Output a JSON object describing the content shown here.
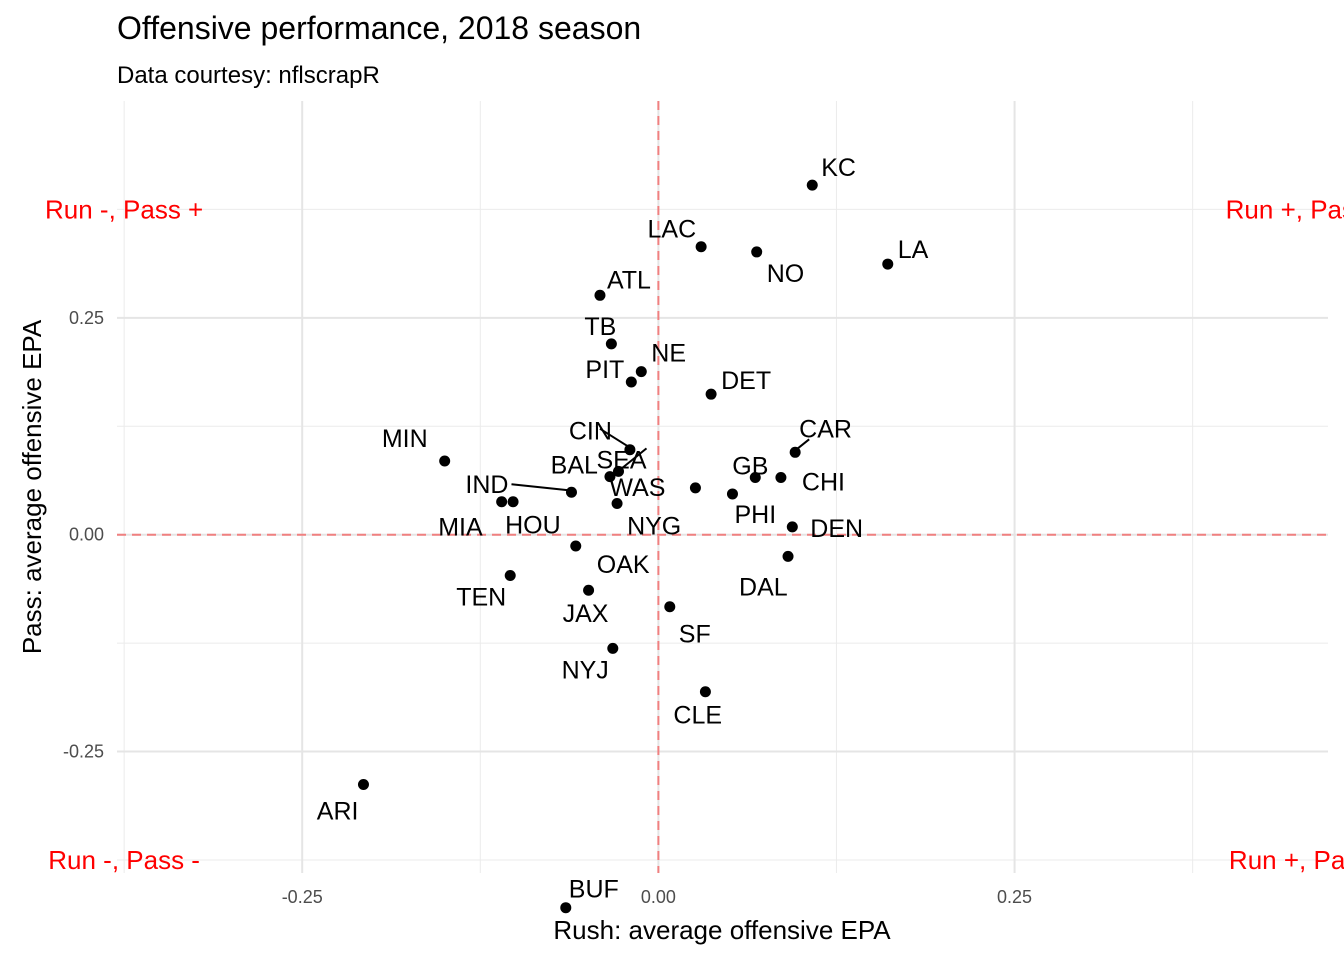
{
  "chart_data": {
    "type": "scatter",
    "title": "Offensive performance, 2018 season",
    "subtitle": "Data courtesy: nflscrapR",
    "xlabel": "Rush: average offensive EPA",
    "ylabel": "Pass: average offensive EPA",
    "xlim": [
      -0.38,
      0.47
    ],
    "ylim": [
      -0.39,
      0.5
    ],
    "x_ticks": [
      -0.25,
      0.0,
      0.25
    ],
    "x_tick_labels": [
      "-0.25",
      "0.00",
      "0.25"
    ],
    "y_ticks": [
      -0.25,
      0.0,
      0.25
    ],
    "y_tick_labels": [
      "-0.25",
      "0.00",
      "0.25"
    ],
    "grid": true,
    "reference_lines": {
      "x": 0,
      "y": 0,
      "color": "#F08080",
      "style": "dashed"
    },
    "quadrant_labels": [
      {
        "text": "Run -, Pass +",
        "x": -0.375,
        "y": 0.375
      },
      {
        "text": "Run +, Pass +",
        "x": 0.456,
        "y": 0.375
      },
      {
        "text": "Run -, Pass -",
        "x": -0.375,
        "y": -0.375
      },
      {
        "text": "Run +, Pass -",
        "x": 0.456,
        "y": -0.375
      }
    ],
    "quadrant_color": "#FF0000",
    "point_color": "#000000",
    "points": [
      {
        "team": "KC",
        "x": 0.108,
        "y": 0.403
      },
      {
        "team": "LAC",
        "x": 0.03,
        "y": 0.332
      },
      {
        "team": "NO",
        "x": 0.069,
        "y": 0.326
      },
      {
        "team": "LA",
        "x": 0.161,
        "y": 0.312
      },
      {
        "team": "ATL",
        "x": -0.041,
        "y": 0.276
      },
      {
        "team": "TB",
        "x": -0.033,
        "y": 0.22
      },
      {
        "team": "NE",
        "x": -0.012,
        "y": 0.188
      },
      {
        "team": "PIT",
        "x": -0.019,
        "y": 0.176
      },
      {
        "team": "DET",
        "x": 0.037,
        "y": 0.162
      },
      {
        "team": "CIN",
        "x": -0.02,
        "y": 0.098
      },
      {
        "team": "SEA",
        "x": -0.028,
        "y": 0.073
      },
      {
        "team": "CAR",
        "x": 0.096,
        "y": 0.095
      },
      {
        "team": "MIN",
        "x": -0.15,
        "y": 0.085
      },
      {
        "team": "BAL",
        "x": -0.034,
        "y": 0.067
      },
      {
        "team": "GB",
        "x": 0.068,
        "y": 0.066
      },
      {
        "team": "CHI",
        "x": 0.086,
        "y": 0.066
      },
      {
        "team": "WAS",
        "x": 0.026,
        "y": 0.054
      },
      {
        "team": "IND",
        "x": -0.061,
        "y": 0.049
      },
      {
        "team": "PHI",
        "x": 0.052,
        "y": 0.047
      },
      {
        "team": "MIA",
        "x": -0.11,
        "y": 0.038
      },
      {
        "team": "HOU",
        "x": -0.102,
        "y": 0.038
      },
      {
        "team": "NYG",
        "x": -0.029,
        "y": 0.036
      },
      {
        "team": "DEN",
        "x": 0.094,
        "y": 0.009
      },
      {
        "team": "OAK",
        "x": -0.058,
        "y": -0.013
      },
      {
        "team": "DAL",
        "x": 0.091,
        "y": -0.025
      },
      {
        "team": "TEN",
        "x": -0.104,
        "y": -0.047
      },
      {
        "team": "JAX",
        "x": -0.049,
        "y": -0.064
      },
      {
        "team": "SF",
        "x": 0.008,
        "y": -0.083
      },
      {
        "team": "NYJ",
        "x": -0.032,
        "y": -0.131
      },
      {
        "team": "CLE",
        "x": 0.033,
        "y": -0.181
      },
      {
        "team": "ARI",
        "x": -0.207,
        "y": -0.288
      },
      {
        "team": "BUF",
        "x": -0.065,
        "y": -0.43
      }
    ]
  }
}
